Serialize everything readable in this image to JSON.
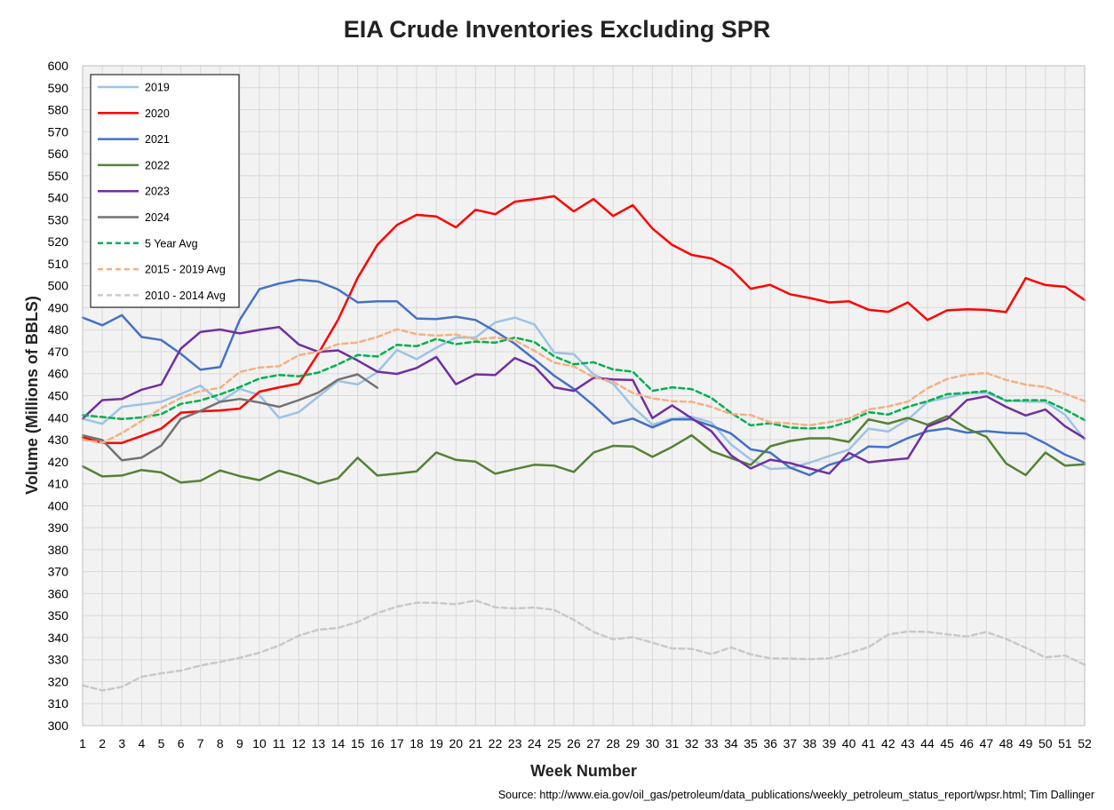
{
  "chart_data": {
    "type": "line",
    "title": "EIA Crude Inventories Excluding SPR",
    "xlabel": "Week Number",
    "ylabel": "Volume (Millions of BBLS)",
    "xlim": [
      1,
      52
    ],
    "ylim": [
      300,
      600
    ],
    "ytick_step": 10,
    "grid": true,
    "legend_position": "top-left",
    "source": "Source: http://www.eia.gov/oil_gas/petroleum/data_publications/weekly_petroleum_status_report/wpsr.html; Tim Dallinger",
    "x": [
      1,
      2,
      3,
      4,
      5,
      6,
      7,
      8,
      9,
      10,
      11,
      12,
      13,
      14,
      15,
      16,
      17,
      18,
      19,
      20,
      21,
      22,
      23,
      24,
      25,
      26,
      27,
      28,
      29,
      30,
      31,
      32,
      33,
      34,
      35,
      36,
      37,
      38,
      39,
      40,
      41,
      42,
      43,
      44,
      45,
      46,
      47,
      48,
      49,
      50,
      51,
      52
    ],
    "series": [
      {
        "name": "2019",
        "color": "#9DC3E6",
        "dashed": false,
        "values": [
          439.5,
          437.2,
          444.9,
          446.1,
          447.2,
          450.8,
          454.6,
          447.2,
          453.1,
          450.3,
          439.9,
          442.5,
          449.6,
          456.7,
          455.1,
          460.7,
          470.8,
          466.6,
          471.8,
          476.4,
          476.5,
          483.3,
          485.5,
          482.4,
          469.6,
          468.9,
          459.7,
          455.4,
          445.0,
          436.8,
          439.5,
          440.4,
          437.8,
          427.8,
          421.0,
          416.7,
          417.1,
          419.5,
          422.6,
          425.5,
          435.0,
          433.7,
          439.1,
          447.2,
          449.1,
          451.1,
          451.3,
          447.8,
          447.3,
          447.2,
          441.3,
          430.0
        ]
      },
      {
        "name": "2020",
        "color": "#FF0000",
        "dashed": false,
        "values": [
          431.1,
          428.5,
          428.5,
          431.7,
          435.0,
          442.3,
          442.9,
          443.3,
          444.1,
          451.8,
          453.8,
          455.5,
          469.2,
          484.5,
          503.6,
          518.6,
          527.6,
          532.2,
          531.5,
          526.5,
          534.5,
          532.5,
          538.2,
          539.3,
          540.7,
          533.8,
          539.4,
          531.7,
          536.6,
          526.0,
          518.6,
          514.0,
          512.4,
          507.6,
          498.6,
          500.4,
          496.1,
          494.4,
          492.4,
          492.9,
          489.1,
          488.1,
          492.4,
          484.4,
          488.8,
          489.3,
          489.0,
          488.0,
          503.4,
          500.3,
          499.5,
          493.5
        ]
      },
      {
        "name": "2021",
        "color": "#4472C4",
        "dashed": false,
        "values": [
          485.5,
          482.0,
          486.6,
          476.7,
          475.3,
          469.0,
          461.8,
          463.0,
          484.5,
          498.4,
          501.0,
          502.7,
          501.9,
          498.3,
          492.4,
          492.9,
          492.9,
          485.1,
          484.8,
          485.9,
          484.4,
          479.3,
          473.6,
          466.5,
          459.1,
          453.1,
          445.6,
          437.3,
          439.6,
          435.6,
          439.2,
          439.2,
          436.3,
          432.8,
          425.6,
          424.1,
          417.3,
          413.9,
          418.6,
          421.1,
          426.9,
          426.6,
          430.7,
          433.9,
          435.1,
          433.2,
          433.9,
          433.1,
          432.8,
          428.3,
          423.2,
          419.5
        ]
      },
      {
        "name": "2022",
        "color": "#548235",
        "dashed": false,
        "values": [
          417.9,
          413.3,
          413.7,
          416.2,
          415.1,
          410.5,
          411.3,
          416.0,
          413.4,
          411.6,
          415.9,
          413.4,
          410.0,
          412.4,
          421.8,
          413.7,
          414.6,
          415.6,
          424.2,
          420.8,
          420.0,
          414.5,
          416.6,
          418.6,
          418.2,
          415.3,
          424.1,
          427.2,
          426.9,
          422.2,
          426.7,
          432.0,
          424.8,
          421.6,
          418.5,
          427.0,
          429.4,
          430.6,
          430.6,
          429.0,
          439.2,
          437.3,
          439.9,
          436.8,
          440.7,
          435.1,
          431.3,
          419.2,
          413.9,
          424.1,
          418.2,
          418.8
        ]
      },
      {
        "name": "2023",
        "color": "#7030A0",
        "dashed": false,
        "values": [
          439.6,
          448.0,
          448.5,
          452.7,
          455.1,
          471.4,
          479.0,
          480.1,
          478.3,
          479.9,
          481.2,
          473.3,
          469.9,
          470.6,
          466.0,
          460.9,
          459.9,
          462.6,
          467.6,
          455.2,
          459.7,
          459.4,
          467.1,
          463.3,
          453.8,
          452.2,
          458.1,
          457.4,
          457.1,
          439.8,
          445.6,
          439.7,
          433.8,
          422.9,
          416.9,
          420.9,
          419.4,
          416.9,
          414.6,
          424.0,
          419.7,
          420.7,
          421.5,
          436.0,
          439.4,
          448.0,
          449.7,
          444.9,
          441.0,
          443.7,
          436.1,
          430.6
        ]
      },
      {
        "name": "2024",
        "color": "#767171",
        "dashed": false,
        "values": [
          432.0,
          429.8,
          420.6,
          421.8,
          427.3,
          439.4,
          443.1,
          447.2,
          448.5,
          446.9,
          444.9,
          448.0,
          451.4,
          457.3,
          459.7,
          453.6,
          null,
          null,
          null,
          null,
          null,
          null,
          null,
          null,
          null,
          null,
          null,
          null,
          null,
          null,
          null,
          null,
          null,
          null,
          null,
          null,
          null,
          null,
          null,
          null,
          null,
          null,
          null,
          null,
          null,
          null,
          null,
          null,
          null,
          null,
          null,
          null
        ]
      },
      {
        "name": "5 Year Avg",
        "color": "#00B050",
        "dashed": true,
        "values": [
          441.1,
          440.3,
          439.4,
          440.1,
          441.6,
          446.3,
          447.8,
          450.6,
          453.9,
          457.8,
          459.4,
          458.8,
          460.5,
          464.2,
          468.5,
          467.8,
          473.1,
          472.5,
          475.8,
          473.4,
          474.6,
          474.1,
          476.4,
          474.4,
          467.9,
          464.3,
          465.2,
          461.9,
          460.9,
          452.2,
          453.8,
          453.0,
          449.0,
          442.2,
          436.5,
          437.5,
          435.5,
          435.1,
          435.6,
          438.2,
          442.5,
          441.4,
          444.9,
          447.5,
          450.7,
          451.3,
          452.1,
          447.7,
          448.0,
          447.9,
          443.7,
          438.9
        ]
      },
      {
        "name": "2015 - 2019 Avg",
        "color": "#F4B183",
        "dashed": true,
        "values": [
          430.0,
          428.5,
          433.0,
          438.5,
          444.3,
          449.0,
          452.1,
          453.6,
          460.8,
          462.8,
          463.4,
          468.4,
          470.0,
          473.4,
          474.2,
          476.7,
          480.2,
          478.0,
          477.3,
          477.8,
          475.5,
          476.5,
          475.1,
          470.4,
          465.0,
          463.3,
          458.4,
          456.3,
          451.2,
          448.8,
          447.5,
          447.2,
          444.9,
          441.7,
          441.2,
          437.9,
          437.4,
          436.5,
          438.0,
          439.6,
          443.8,
          445.1,
          447.3,
          453.4,
          457.6,
          459.6,
          460.3,
          457.2,
          455.0,
          453.9,
          450.9,
          447.5
        ]
      },
      {
        "name": "2010 - 2014 Avg",
        "color": "#C9C9C9",
        "dashed": true,
        "values": [
          318.3,
          316.0,
          317.6,
          322.2,
          323.8,
          325.0,
          327.3,
          329.0,
          330.8,
          333.2,
          336.4,
          340.9,
          343.6,
          344.4,
          347.1,
          351.2,
          354.1,
          355.9,
          355.8,
          355.2,
          356.9,
          353.8,
          353.3,
          353.7,
          352.6,
          348.1,
          342.6,
          339.2,
          340.2,
          337.7,
          335.1,
          334.9,
          332.5,
          335.6,
          332.4,
          330.6,
          330.5,
          330.2,
          330.6,
          333.0,
          335.7,
          341.4,
          342.8,
          342.6,
          341.5,
          340.5,
          342.6,
          339.4,
          335.4,
          331.0,
          331.9,
          327.6
        ]
      }
    ]
  }
}
